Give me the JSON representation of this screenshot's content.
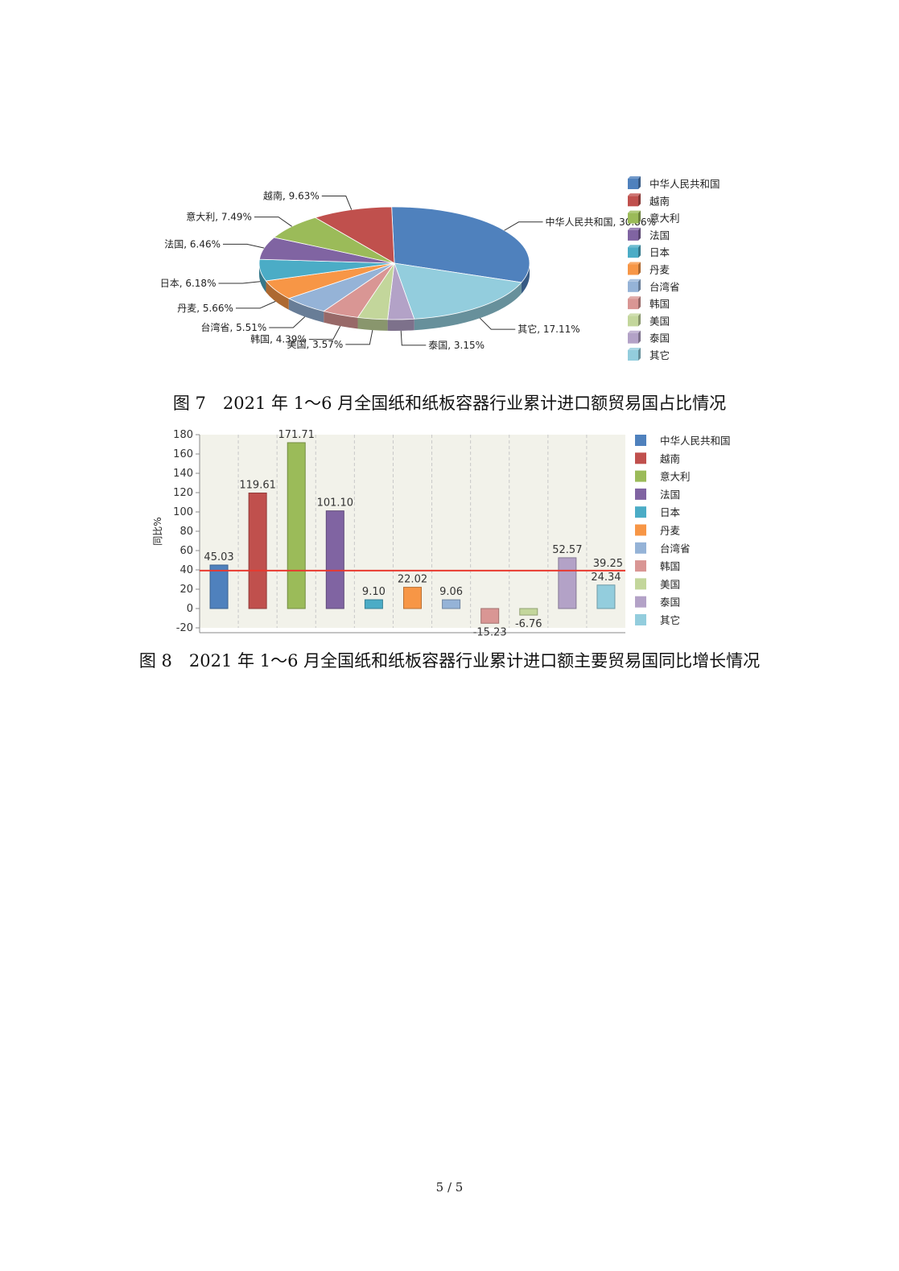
{
  "figure7": {
    "caption": "图 7　2021 年 1～6 月全国纸和纸板容器行业累计进口额贸易国占比情况"
  },
  "figure8": {
    "caption": "图 8　2021 年 1～6 月全国纸和纸板容器行业累计进口额主要贸易国同比增长情况"
  },
  "page_number": "5 / 5",
  "chart_data": [
    {
      "type": "pie",
      "slices": [
        {
          "name": "中华人民共和国",
          "value": 30.86,
          "label": "中华人民共和国, 30.86%",
          "color": "#4f81bd"
        },
        {
          "name": "其它",
          "value": 17.11,
          "label": "其它, 17.11%",
          "color": "#93cddd"
        },
        {
          "name": "泰国",
          "value": 3.15,
          "label": "泰国, 3.15%",
          "color": "#b3a2c7"
        },
        {
          "name": "美国",
          "value": 3.57,
          "label": "美国, 3.57%",
          "color": "#c3d69b"
        },
        {
          "name": "韩国",
          "value": 4.39,
          "label": "韩国, 4.39%",
          "color": "#d99694"
        },
        {
          "name": "台湾省",
          "value": 5.51,
          "label": "台湾省, 5.51%",
          "color": "#95b3d7"
        },
        {
          "name": "丹麦",
          "value": 5.66,
          "label": "丹麦, 5.66%",
          "color": "#f79646"
        },
        {
          "name": "日本",
          "value": 6.18,
          "label": "日本, 6.18%",
          "color": "#4bacc6"
        },
        {
          "name": "法国",
          "value": 6.46,
          "label": "法国, 6.46%",
          "color": "#8064a2"
        },
        {
          "name": "意大利",
          "value": 7.49,
          "label": "意大利, 7.49%",
          "color": "#9bbb59"
        },
        {
          "name": "越南",
          "value": 9.63,
          "label": "越南, 9.63%",
          "color": "#c0504d"
        }
      ],
      "legend": {
        "position": "right",
        "items": [
          "中华人民共和国",
          "越南",
          "意大利",
          "法国",
          "日本",
          "丹麦",
          "台湾省",
          "韩国",
          "美国",
          "泰国",
          "其它"
        ]
      }
    },
    {
      "type": "bar",
      "ylabel": "同比%",
      "ylim": [
        -20,
        180
      ],
      "yticks": [
        "-20",
        "0",
        "20",
        "40",
        "60",
        "80",
        "100",
        "120",
        "140",
        "160",
        "180"
      ],
      "categories": [
        "中华人民共和国",
        "越南",
        "意大利",
        "法国",
        "日本",
        "丹麦",
        "台湾省",
        "韩国",
        "美国",
        "泰国",
        "其它"
      ],
      "values": [
        45.03,
        119.61,
        171.71,
        101.1,
        9.1,
        22.02,
        9.06,
        -15.23,
        -6.76,
        52.57,
        24.34
      ],
      "value_labels": [
        "45.03",
        "119.61",
        "171.71",
        "101.10",
        "9.10",
        "22.02",
        "9.06",
        "-15.23",
        "-6.76",
        "52.57",
        "24.34"
      ],
      "colors": [
        "#4f81bd",
        "#c0504d",
        "#9bbb59",
        "#8064a2",
        "#4bacc6",
        "#f79646",
        "#95b3d7",
        "#d99694",
        "#c3d69b",
        "#b3a2c7",
        "#93cddd"
      ],
      "reference_line": {
        "value": 39.25,
        "label": "39.25",
        "color": "#e8392f"
      },
      "grid": true,
      "plot_background": "#f2f2ea",
      "legend": {
        "position": "right",
        "items": [
          "中华人民共和国",
          "越南",
          "意大利",
          "法国",
          "日本",
          "丹麦",
          "台湾省",
          "韩国",
          "美国",
          "泰国",
          "其它"
        ]
      }
    }
  ]
}
